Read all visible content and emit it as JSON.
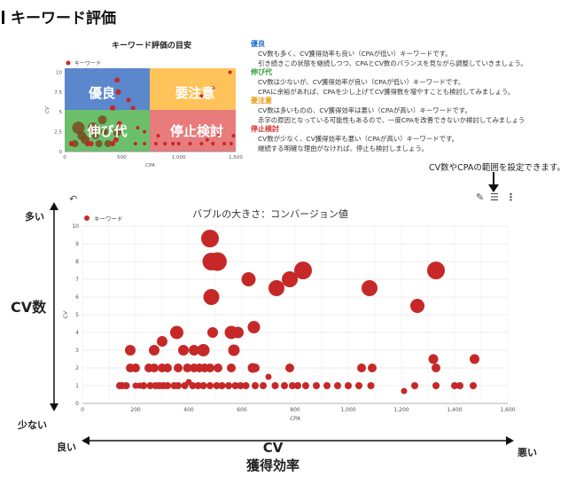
{
  "page": {
    "heading": "キーワード評価",
    "hint": "CV数やCPAの範囲を設定できます。",
    "labels": {
      "cv_axis": "CV数",
      "cv_high": "多い",
      "cv_low": "少ない",
      "eff_line1": "CV",
      "eff_line2": "獲得効率",
      "eff_good": "良い",
      "eff_bad": "悪い"
    },
    "icons": [
      "pencil-icon",
      "filter-sliders-icon",
      "more-vert-icon",
      "undo-icon"
    ],
    "colors": {
      "bubble": "#c62828",
      "good": "#4a7fd4",
      "notice": "#f0a100",
      "growth": "#4caf50",
      "stop": "#e04848"
    }
  },
  "guide_chart": {
    "title": "キーワード評価の目安",
    "legend": "キーワード",
    "quadrants": [
      {
        "label": "優良",
        "color": "#5b87cc"
      },
      {
        "label": "要注意",
        "color": "#ffc35a"
      },
      {
        "label": "伸び代",
        "color": "#6bbf6b"
      },
      {
        "label": "停止検討",
        "color": "#e87b7b"
      }
    ]
  },
  "descriptions": [
    {
      "heading": "優良",
      "color": "#1e6fd9",
      "lines": [
        "CV数も多く、CV獲得効率も良い（CPAが低い）キーワードです。",
        "引き続きこの状態を継続しつつ、CPAとCV数のバランスを見ながら調整していきましょう。"
      ]
    },
    {
      "heading": "伸び代",
      "color": "#2e9d3a",
      "lines": [
        "CV数は少ないが、CV獲得効率が良い（CPAが低い）キーワードです。",
        "CPAに余裕があれば、CPAを少し上げてCV獲得数を増やすことも検討してみましょう。"
      ]
    },
    {
      "heading": "要注意",
      "color": "#e69500",
      "lines": [
        "CV数は多いものの、CV獲得効率は悪い（CPAが高い）キーワードです。",
        "赤字の原因となっている可能性もあるので、一度CPAを改善できないか検討してみましょう"
      ]
    },
    {
      "heading": "停止検討",
      "color": "#d42b2b",
      "lines": [
        "CV数が少なく、CV獲得効率も悪い（CPAが高い）キーワードです。",
        "継続する明確な理由がなければ、停止も検討しましょう。"
      ]
    }
  ],
  "chart_data": [
    {
      "type": "scatter",
      "title": "キーワード評価の目安",
      "legend": [
        "キーワード"
      ],
      "xlabel": "CPA",
      "ylabel": "CV",
      "xlim": [
        0,
        1500
      ],
      "ylim": [
        0,
        10.5
      ],
      "xticks": [
        "0",
        "500",
        "1,000",
        "1,500"
      ],
      "yticks": [
        "0",
        "2.5",
        "5",
        "7.5",
        "10"
      ],
      "quadrant_split": {
        "x": 500,
        "y": 4.5
      },
      "points": [
        {
          "x": 300,
          "y": 1,
          "r": 4
        },
        {
          "x": 380,
          "y": 1,
          "r": 4
        },
        {
          "x": 450,
          "y": 1.5,
          "r": 3
        },
        {
          "x": 200,
          "y": 1,
          "r": 3
        },
        {
          "x": 120,
          "y": 3,
          "r": 7
        },
        {
          "x": 250,
          "y": 3,
          "r": 6
        },
        {
          "x": 180,
          "y": 1.5,
          "r": 5
        },
        {
          "x": 90,
          "y": 1,
          "r": 4
        },
        {
          "x": 460,
          "y": 2.5,
          "r": 5
        },
        {
          "x": 420,
          "y": 5.5,
          "r": 3
        },
        {
          "x": 460,
          "y": 9,
          "r": 3
        },
        {
          "x": 470,
          "y": 7.5,
          "r": 3
        },
        {
          "x": 330,
          "y": 4,
          "r": 5
        },
        {
          "x": 350,
          "y": 2.5,
          "r": 4
        },
        {
          "x": 60,
          "y": 1,
          "r": 3
        },
        {
          "x": 150,
          "y": 2,
          "r": 5
        },
        {
          "x": 270,
          "y": 2,
          "r": 4
        },
        {
          "x": 230,
          "y": 1,
          "r": 3
        },
        {
          "x": 420,
          "y": 1,
          "r": 3
        },
        {
          "x": 480,
          "y": 3.5,
          "r": 3
        },
        {
          "x": 560,
          "y": 6.5,
          "r": 2.5
        },
        {
          "x": 600,
          "y": 5.5,
          "r": 2.5
        },
        {
          "x": 620,
          "y": 1,
          "r": 2
        },
        {
          "x": 700,
          "y": 1,
          "r": 2
        },
        {
          "x": 800,
          "y": 1,
          "r": 2
        },
        {
          "x": 880,
          "y": 1,
          "r": 2
        },
        {
          "x": 950,
          "y": 1,
          "r": 2
        },
        {
          "x": 1000,
          "y": 1,
          "r": 2
        },
        {
          "x": 1100,
          "y": 1,
          "r": 2
        },
        {
          "x": 1200,
          "y": 1,
          "r": 2
        },
        {
          "x": 1300,
          "y": 1,
          "r": 2
        },
        {
          "x": 1400,
          "y": 1,
          "r": 2
        },
        {
          "x": 1460,
          "y": 1,
          "r": 2
        },
        {
          "x": 1350,
          "y": 2,
          "r": 2
        },
        {
          "x": 1100,
          "y": 2,
          "r": 2
        },
        {
          "x": 820,
          "y": 2,
          "r": 2
        },
        {
          "x": 700,
          "y": 2.5,
          "r": 2
        },
        {
          "x": 640,
          "y": 3,
          "r": 2
        },
        {
          "x": 1480,
          "y": 2,
          "r": 2
        },
        {
          "x": 1200,
          "y": 7,
          "r": 2
        },
        {
          "x": 1300,
          "y": 8,
          "r": 2
        },
        {
          "x": 1450,
          "y": 10,
          "r": 2
        },
        {
          "x": 1250,
          "y": 1.5,
          "r": 2
        }
      ]
    },
    {
      "type": "scatter",
      "title": "バブルの大きさ：コンバージョン値",
      "legend": [
        "キーワード"
      ],
      "xlabel": "CPA",
      "ylabel": "CV",
      "xlim": [
        0,
        1600
      ],
      "ylim": [
        0,
        10
      ],
      "xticks": [
        "0",
        "200",
        "400",
        "600",
        "800",
        "1,000",
        "1,200",
        "1,400",
        "1,600"
      ],
      "yticks": [
        "0",
        "1",
        "2",
        "3",
        "4",
        "5",
        "6",
        "7",
        "8",
        "9",
        "10"
      ],
      "grid": true,
      "points": [
        {
          "x": 480,
          "y": 9.3,
          "r": 10
        },
        {
          "x": 485,
          "y": 8,
          "r": 10
        },
        {
          "x": 508,
          "y": 8,
          "r": 10.5
        },
        {
          "x": 830,
          "y": 7.5,
          "r": 10
        },
        {
          "x": 780,
          "y": 7,
          "r": 9
        },
        {
          "x": 730,
          "y": 6.5,
          "r": 9
        },
        {
          "x": 625,
          "y": 7,
          "r": 8
        },
        {
          "x": 1080,
          "y": 6.5,
          "r": 9
        },
        {
          "x": 1330,
          "y": 7.5,
          "r": 10
        },
        {
          "x": 1260,
          "y": 5.5,
          "r": 8
        },
        {
          "x": 485,
          "y": 6,
          "r": 9
        },
        {
          "x": 355,
          "y": 4,
          "r": 7.5
        },
        {
          "x": 490,
          "y": 4,
          "r": 6
        },
        {
          "x": 560,
          "y": 4,
          "r": 7.5
        },
        {
          "x": 585,
          "y": 4,
          "r": 6.5
        },
        {
          "x": 645,
          "y": 4.3,
          "r": 7
        },
        {
          "x": 300,
          "y": 3.5,
          "r": 6
        },
        {
          "x": 270,
          "y": 3,
          "r": 6
        },
        {
          "x": 180,
          "y": 3,
          "r": 6
        },
        {
          "x": 380,
          "y": 3,
          "r": 6
        },
        {
          "x": 420,
          "y": 3,
          "r": 6
        },
        {
          "x": 455,
          "y": 3,
          "r": 7
        },
        {
          "x": 570,
          "y": 3,
          "r": 6.5
        },
        {
          "x": 1320,
          "y": 2.5,
          "r": 5.5
        },
        {
          "x": 1475,
          "y": 2.5,
          "r": 5.5
        },
        {
          "x": 180,
          "y": 2,
          "r": 5
        },
        {
          "x": 200,
          "y": 2,
          "r": 5
        },
        {
          "x": 250,
          "y": 2,
          "r": 5
        },
        {
          "x": 270,
          "y": 2,
          "r": 5
        },
        {
          "x": 300,
          "y": 2,
          "r": 5
        },
        {
          "x": 320,
          "y": 2,
          "r": 5
        },
        {
          "x": 360,
          "y": 2,
          "r": 5
        },
        {
          "x": 395,
          "y": 2,
          "r": 5
        },
        {
          "x": 420,
          "y": 2,
          "r": 5
        },
        {
          "x": 440,
          "y": 2,
          "r": 5
        },
        {
          "x": 460,
          "y": 2,
          "r": 5
        },
        {
          "x": 480,
          "y": 2,
          "r": 5
        },
        {
          "x": 510,
          "y": 2,
          "r": 5
        },
        {
          "x": 560,
          "y": 2,
          "r": 5
        },
        {
          "x": 640,
          "y": 2,
          "r": 5.5
        },
        {
          "x": 650,
          "y": 2,
          "r": 5
        },
        {
          "x": 780,
          "y": 2,
          "r": 5
        },
        {
          "x": 1050,
          "y": 2,
          "r": 5
        },
        {
          "x": 1090,
          "y": 2,
          "r": 5
        },
        {
          "x": 1330,
          "y": 2,
          "r": 5
        },
        {
          "x": 400,
          "y": 1.2,
          "r": 3.5
        },
        {
          "x": 1210,
          "y": 0.7,
          "r": 3.5
        },
        {
          "x": 140,
          "y": 1,
          "r": 4
        },
        {
          "x": 150,
          "y": 1,
          "r": 4
        },
        {
          "x": 165,
          "y": 1,
          "r": 4
        },
        {
          "x": 200,
          "y": 1,
          "r": 3.5
        },
        {
          "x": 215,
          "y": 1,
          "r": 3.5
        },
        {
          "x": 230,
          "y": 1,
          "r": 4
        },
        {
          "x": 255,
          "y": 1,
          "r": 4
        },
        {
          "x": 275,
          "y": 1,
          "r": 4
        },
        {
          "x": 290,
          "y": 1,
          "r": 4
        },
        {
          "x": 305,
          "y": 1,
          "r": 4
        },
        {
          "x": 320,
          "y": 1,
          "r": 4
        },
        {
          "x": 345,
          "y": 1,
          "r": 4
        },
        {
          "x": 360,
          "y": 1,
          "r": 4
        },
        {
          "x": 385,
          "y": 1,
          "r": 4
        },
        {
          "x": 415,
          "y": 1,
          "r": 4
        },
        {
          "x": 435,
          "y": 1,
          "r": 4
        },
        {
          "x": 455,
          "y": 1,
          "r": 4
        },
        {
          "x": 480,
          "y": 1,
          "r": 4
        },
        {
          "x": 505,
          "y": 1,
          "r": 4
        },
        {
          "x": 525,
          "y": 1,
          "r": 4
        },
        {
          "x": 550,
          "y": 1,
          "r": 4
        },
        {
          "x": 575,
          "y": 1,
          "r": 4
        },
        {
          "x": 595,
          "y": 1,
          "r": 4
        },
        {
          "x": 615,
          "y": 1,
          "r": 4
        },
        {
          "x": 650,
          "y": 1,
          "r": 4
        },
        {
          "x": 680,
          "y": 1,
          "r": 4
        },
        {
          "x": 725,
          "y": 1,
          "r": 4
        },
        {
          "x": 760,
          "y": 1,
          "r": 4
        },
        {
          "x": 790,
          "y": 1,
          "r": 4
        },
        {
          "x": 810,
          "y": 1,
          "r": 4
        },
        {
          "x": 840,
          "y": 1,
          "r": 4
        },
        {
          "x": 880,
          "y": 1,
          "r": 4
        },
        {
          "x": 920,
          "y": 1,
          "r": 4
        },
        {
          "x": 960,
          "y": 1,
          "r": 4
        },
        {
          "x": 1000,
          "y": 1,
          "r": 4
        },
        {
          "x": 1040,
          "y": 1,
          "r": 4
        },
        {
          "x": 1085,
          "y": 1,
          "r": 4
        },
        {
          "x": 1250,
          "y": 1,
          "r": 4
        },
        {
          "x": 1330,
          "y": 1,
          "r": 4
        },
        {
          "x": 1400,
          "y": 1,
          "r": 4
        },
        {
          "x": 1420,
          "y": 1,
          "r": 4
        },
        {
          "x": 1470,
          "y": 1,
          "r": 4
        },
        {
          "x": 700,
          "y": 1.5,
          "r": 3.5
        }
      ]
    }
  ]
}
